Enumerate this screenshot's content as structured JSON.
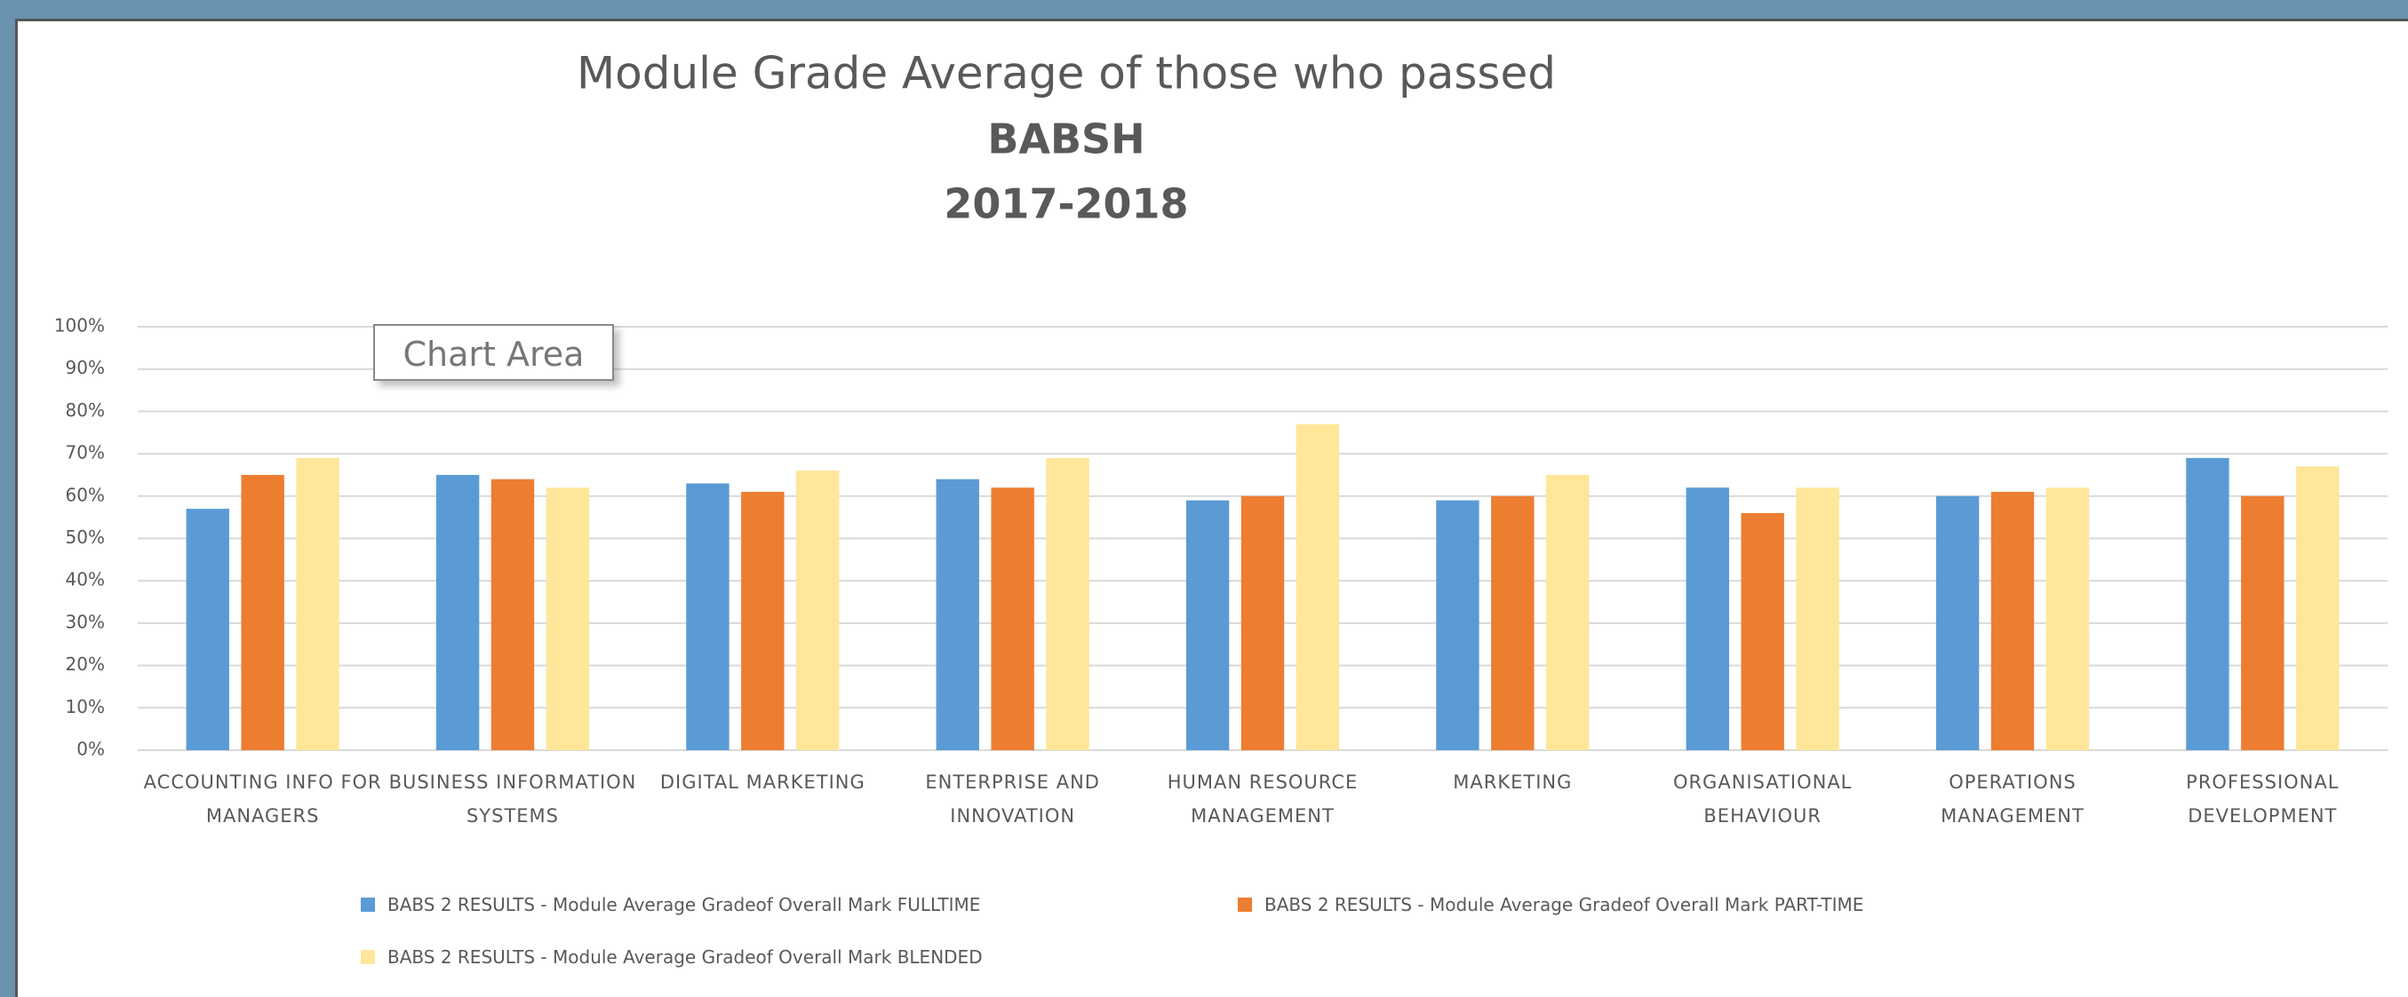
{
  "chart_data": {
    "type": "bar",
    "title": "Module Grade Average of those who passed",
    "subtitle": [
      "BABSH",
      "2017-2018"
    ],
    "tooltip": "Chart Area",
    "categories": [
      "ACCOUNTING INFO FOR MANAGERS",
      "BUSINESS INFORMATION SYSTEMS",
      "DIGITAL MARKETING",
      "ENTERPRISE AND INNOVATION",
      "HUMAN RESOURCE MANAGEMENT",
      "MARKETING",
      "ORGANISATIONAL BEHAVIOUR",
      "OPERATIONS MANAGEMENT",
      "PROFESSIONAL DEVELOPMENT"
    ],
    "series": [
      {
        "name": "BABS 2 RESULTS - Module Average Gradeof Overall Mark FULLTIME",
        "color": "#5b9bd5",
        "values": [
          57,
          65,
          63,
          64,
          59,
          59,
          62,
          60,
          69
        ]
      },
      {
        "name": "BABS 2 RESULTS - Module Average Gradeof Overall Mark PART-TIME",
        "color": "#ed7d31",
        "values": [
          65,
          64,
          61,
          62,
          60,
          60,
          56,
          61,
          60
        ]
      },
      {
        "name": "BABS 2 RESULTS - Module Average Gradeof Overall Mark BLENDED",
        "color": "#ffe699",
        "values": [
          69,
          62,
          66,
          69,
          77,
          65,
          62,
          62,
          67
        ]
      }
    ],
    "ylim": [
      0,
      100
    ],
    "yticks": [
      {
        "value": 0,
        "label": "0%"
      },
      {
        "value": 10,
        "label": "10%"
      },
      {
        "value": 20,
        "label": "20%"
      },
      {
        "value": 30,
        "label": "30%"
      },
      {
        "value": 40,
        "label": "40%"
      },
      {
        "value": 50,
        "label": "50%"
      },
      {
        "value": 60,
        "label": "60%"
      },
      {
        "value": 70,
        "label": "70%"
      },
      {
        "value": 80,
        "label": "80%"
      },
      {
        "value": 90,
        "label": "90%"
      },
      {
        "value": 100,
        "label": "100%"
      }
    ],
    "grid": true,
    "legend": "bottom"
  }
}
